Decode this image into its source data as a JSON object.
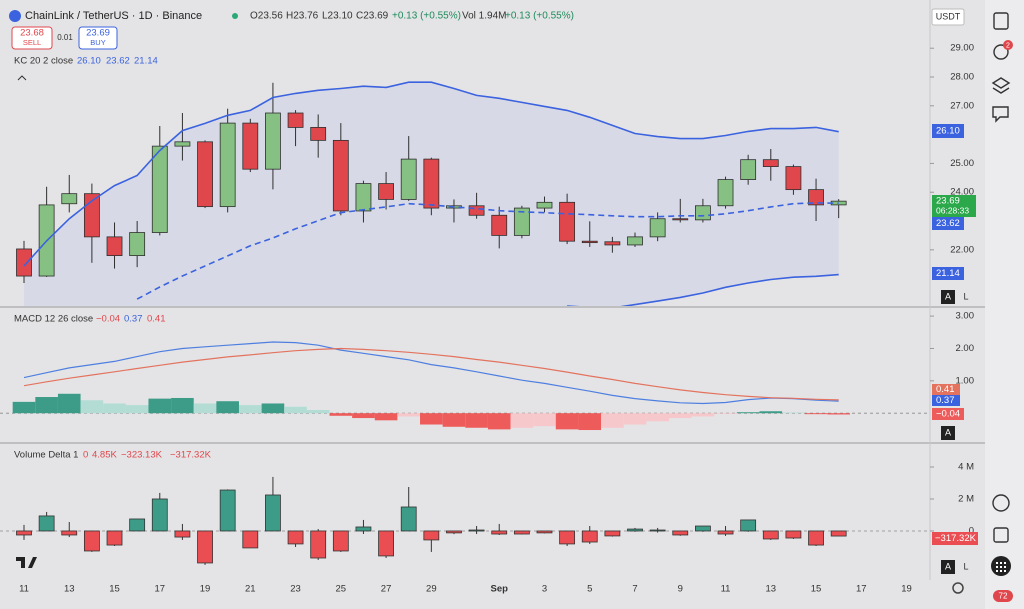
{
  "ui": {
    "symbol": "ChainLink / TetherUS · 1D · Binance",
    "ohlc": [
      "O23.56",
      "H23.76",
      "L23.10",
      "C23.69",
      "+0.13 (+0.55%)",
      "Vol 1.94M",
      "+0.13 (+0.55%)"
    ],
    "sell_price": "23.68",
    "sell": "SELL",
    "spread": "0.01",
    "buy_price": "23.69",
    "buy": "BUY",
    "currency": "USDT",
    "kc_title": "KC 20 2 close",
    "kc_values": [
      "26.10",
      "23.62",
      "21.14"
    ],
    "price_badges": [
      "26.10",
      "23.69",
      "06:28:33",
      "23.62",
      "21.14"
    ],
    "macd_title": "MACD 12 26 close",
    "macd_values": [
      "−0.04",
      "0.37",
      "0.41"
    ],
    "macd_badges": [
      "0.41",
      "0.37",
      "−0.04"
    ],
    "vd_title": "Volume Delta 1",
    "vd_values": [
      "0",
      "4.85K",
      "−323.13K",
      "−317.32K"
    ],
    "vd_badge": "−317.32K",
    "scale_buttons": [
      "A",
      "L"
    ],
    "alert_count": "2",
    "bottom_count": "72"
  },
  "chart_data": [
    {
      "type": "candlestick",
      "categories": [
        "11",
        null,
        "13",
        null,
        "15",
        null,
        "17",
        null,
        "19",
        null,
        "21",
        null,
        "23",
        null,
        "25",
        null,
        "27",
        null,
        "29",
        null,
        null,
        "Sep",
        null,
        "3",
        null,
        "5",
        null,
        "7",
        null,
        "9",
        null,
        "11",
        null,
        "13",
        null,
        "15",
        null,
        "17",
        null,
        "19"
      ],
      "open": [
        22.03,
        21.09,
        23.6,
        23.95,
        22.45,
        21.8,
        22.6,
        25.6,
        25.75,
        23.5,
        26.4,
        24.8,
        26.75,
        26.25,
        25.8,
        23.35,
        24.3,
        23.75,
        25.15,
        23.45,
        23.53,
        23.2,
        22.5,
        23.45,
        23.65,
        22.3,
        22.28,
        22.17,
        22.45,
        23.08,
        23.04,
        23.53,
        24.44,
        25.13,
        24.89,
        24.09,
        23.56,
        null,
        null,
        null
      ],
      "high": [
        22.31,
        24.19,
        24.6,
        24.3,
        22.95,
        23.0,
        26.3,
        26.75,
        25.8,
        26.9,
        26.55,
        27.8,
        26.85,
        26.7,
        26.4,
        24.4,
        24.7,
        25.95,
        25.2,
        23.75,
        23.98,
        23.5,
        23.53,
        23.85,
        23.95,
        22.99,
        22.45,
        22.6,
        23.3,
        23.77,
        23.77,
        24.54,
        25.3,
        25.5,
        24.96,
        24.47,
        23.76,
        null,
        null,
        null
      ],
      "low": [
        20.85,
        21.06,
        23.3,
        21.55,
        21.35,
        21.4,
        22.5,
        25.1,
        23.45,
        23.3,
        24.7,
        24.1,
        25.6,
        25.2,
        23.2,
        22.95,
        23.4,
        23.7,
        23.2,
        22.95,
        23.08,
        22.05,
        22.4,
        23.3,
        22.2,
        22.1,
        21.9,
        22.1,
        22.3,
        22.95,
        22.95,
        23.43,
        24.26,
        24.4,
        23.91,
        23.0,
        23.1,
        null,
        null,
        null
      ],
      "close": [
        21.09,
        23.56,
        23.95,
        22.45,
        21.8,
        22.6,
        25.6,
        25.75,
        23.5,
        26.4,
        24.8,
        26.75,
        26.25,
        25.8,
        23.35,
        24.3,
        23.75,
        25.15,
        23.45,
        23.53,
        23.2,
        22.5,
        23.45,
        23.65,
        22.3,
        22.25,
        22.17,
        22.45,
        23.08,
        23.04,
        23.53,
        24.44,
        25.13,
        24.89,
        24.09,
        23.56,
        23.69,
        null,
        null,
        null
      ],
      "up_color": "#86c083",
      "down_color": "#e0474c",
      "outline": "#2f2f2f",
      "overlays": [
        {
          "color": "#3b62df",
          "dash": false,
          "values": [
            21.44,
            22.31,
            23.08,
            23.7,
            24.23,
            24.58,
            25.45,
            26.14,
            26.39,
            26.67,
            26.84,
            27.29,
            27.43,
            27.54,
            27.6,
            27.68,
            27.64,
            27.82,
            27.82,
            27.6,
            27.36,
            27.26,
            27.12,
            26.98,
            26.84,
            26.6,
            26.32,
            26.04,
            25.93,
            25.86,
            25.86,
            25.97,
            26.11,
            26.21,
            26.21,
            26.25,
            26.1,
            null,
            null,
            null
          ]
        },
        {
          "color": "#3b62df",
          "dash": true,
          "values": [
            null,
            null,
            null,
            null,
            null,
            20.29,
            20.71,
            21.09,
            21.44,
            21.79,
            22.14,
            22.41,
            22.73,
            23.01,
            23.29,
            23.39,
            23.49,
            23.6,
            23.56,
            23.49,
            23.43,
            23.36,
            23.32,
            23.29,
            23.25,
            23.22,
            23.18,
            23.15,
            23.15,
            23.18,
            23.18,
            23.25,
            23.36,
            23.49,
            23.6,
            23.63,
            23.62,
            null,
            null,
            null
          ]
        },
        {
          "color": "#3b62df",
          "dash": false,
          "values": [
            null,
            null,
            null,
            null,
            null,
            null,
            null,
            null,
            null,
            null,
            null,
            null,
            null,
            null,
            null,
            null,
            null,
            null,
            null,
            null,
            null,
            null,
            null,
            null,
            20.05,
            20.0,
            19.98,
            20.1,
            20.22,
            20.35,
            20.5,
            20.7,
            20.85,
            20.97,
            21.05,
            21.08,
            21.14,
            null,
            null,
            null
          ]
        }
      ],
      "band_fill": "#d3d7e6",
      "ylim": [
        20.05,
        30.5
      ],
      "yticks": [
        {
          "value": 22,
          "label": "22.00"
        },
        {
          "value": 24,
          "label": "24.00"
        },
        {
          "value": 25,
          "label": "25.00"
        },
        {
          "value": 27,
          "label": "27.00"
        },
        {
          "value": 28,
          "label": "28.00"
        },
        {
          "value": 29,
          "label": "29.00"
        }
      ]
    },
    {
      "type": "macd",
      "histogram": [
        0.35,
        0.5,
        0.6,
        0.4,
        0.3,
        0.25,
        0.45,
        0.47,
        0.3,
        0.37,
        0.25,
        0.3,
        0.2,
        0.1,
        -0.08,
        -0.15,
        -0.22,
        -0.1,
        -0.35,
        -0.42,
        -0.45,
        -0.5,
        -0.45,
        -0.4,
        -0.5,
        -0.52,
        -0.45,
        -0.35,
        -0.25,
        -0.15,
        -0.1,
        -0.02,
        0.03,
        0.06,
        0.02,
        -0.03,
        -0.04,
        null,
        null,
        null
      ],
      "hist_colors": {
        "pos_up": "#3d9c88",
        "pos_down": "#b3dcd5",
        "neg_down": "#ee5b5b",
        "neg_up": "#f6c8cb"
      },
      "series": [
        {
          "color": "#4e7fe0",
          "values": [
            1.1,
            1.25,
            1.4,
            1.5,
            1.6,
            1.75,
            1.9,
            2.0,
            2.05,
            2.1,
            2.15,
            2.2,
            2.18,
            2.1,
            1.95,
            1.85,
            1.75,
            1.65,
            1.5,
            1.4,
            1.28,
            1.15,
            1.02,
            0.92,
            0.8,
            0.68,
            0.55,
            0.45,
            0.38,
            0.32,
            0.3,
            0.33,
            0.42,
            0.47,
            0.45,
            0.4,
            0.37,
            null,
            null,
            null
          ]
        },
        {
          "color": "#e3735e",
          "values": [
            0.85,
            0.97,
            1.08,
            1.18,
            1.28,
            1.38,
            1.48,
            1.58,
            1.66,
            1.74,
            1.8,
            1.87,
            1.93,
            1.97,
            2.0,
            1.97,
            1.93,
            1.88,
            1.82,
            1.75,
            1.66,
            1.58,
            1.48,
            1.38,
            1.27,
            1.15,
            1.04,
            0.92,
            0.82,
            0.72,
            0.64,
            0.57,
            0.52,
            0.48,
            0.46,
            0.43,
            0.41,
            null,
            null,
            null
          ]
        }
      ],
      "ylim": [
        -0.89,
        3.25
      ],
      "yticks": [
        {
          "value": 1,
          "label": "1.00"
        },
        {
          "value": 2,
          "label": "2.00"
        },
        {
          "value": 3,
          "label": "3.00"
        }
      ]
    },
    {
      "type": "candlestick",
      "open": [
        0,
        0,
        0,
        0,
        0,
        0,
        0,
        0,
        0,
        0,
        0,
        0,
        0,
        0,
        0,
        0,
        0,
        0,
        0,
        0,
        0,
        0,
        0,
        0,
        0,
        0,
        0,
        0,
        0,
        0,
        0,
        0,
        0,
        0,
        0,
        0,
        0,
        null,
        null,
        null
      ],
      "high": [
        0.38,
        1.19,
        0.56,
        0,
        0,
        0.75,
        2.38,
        0.44,
        0,
        2.6,
        0,
        3.38,
        0,
        0.12,
        0,
        0.69,
        0,
        2.75,
        0,
        0,
        0.31,
        0.44,
        0,
        0,
        0,
        0.31,
        0,
        0.19,
        0.19,
        0,
        0.31,
        0.31,
        0.69,
        0,
        0,
        0,
        0.00485,
        null,
        null,
        null
      ],
      "low": [
        -0.56,
        0,
        -0.38,
        -1.31,
        -0.94,
        0,
        0,
        -0.56,
        -2.12,
        0,
        -1.06,
        0,
        -1.0,
        -1.81,
        -1.31,
        -0.19,
        -1.69,
        0,
        -1.31,
        -0.2,
        -0.19,
        -0.25,
        -0.22,
        -0.15,
        -0.94,
        -0.81,
        -0.35,
        -0.05,
        -0.1,
        -0.3,
        -0.05,
        -0.31,
        -0.05,
        -0.56,
        -0.5,
        -0.94,
        -0.32313,
        null,
        null,
        null
      ],
      "close": [
        -0.25,
        0.94,
        -0.25,
        -1.25,
        -0.88,
        0.75,
        2.0,
        -0.38,
        -2.0,
        2.56,
        -1.06,
        2.25,
        -0.81,
        -1.69,
        -1.25,
        0.25,
        -1.56,
        1.5,
        -0.56,
        -0.12,
        0.06,
        -0.19,
        -0.19,
        -0.12,
        -0.81,
        -0.69,
        -0.31,
        0.12,
        0.06,
        -0.25,
        0.31,
        -0.19,
        0.69,
        -0.5,
        -0.44,
        -0.88,
        -0.31732,
        null,
        null,
        null
      ],
      "up_color": "#3d9c88",
      "down_color": "#ea4e52",
      "outline": "#333333",
      "ylim": [
        -2.94,
        5.375
      ],
      "yticks": [
        0,
        {
          "value": 2,
          "label": "2 M"
        },
        {
          "value": 4,
          "label": "4 M"
        }
      ]
    }
  ]
}
